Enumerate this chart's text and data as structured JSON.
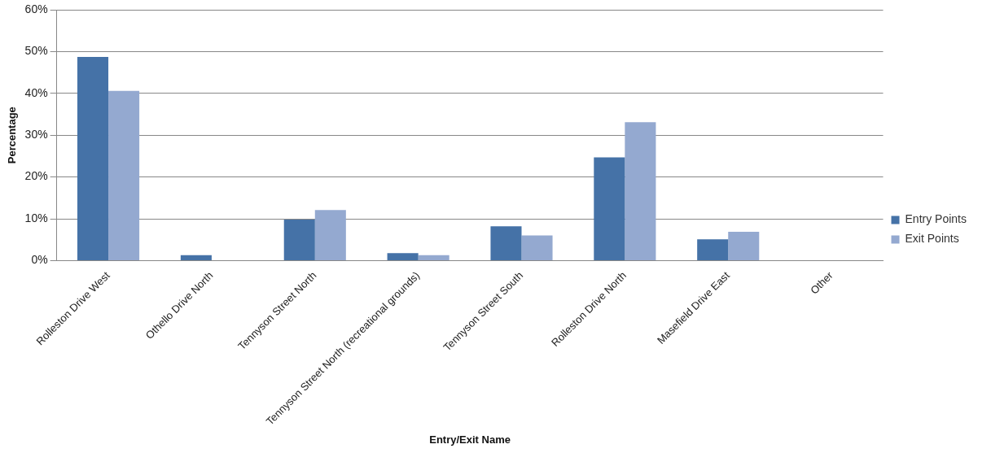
{
  "chart_data": {
    "type": "bar",
    "xlabel": "Entry/Exit Name",
    "ylabel": "Percentage",
    "categories": [
      "Rolleston Drive West",
      "Othello Drive North",
      "Tennyson Street North",
      "Tennyson Street North (recreational grounds)",
      "Tennyson Street South",
      "Rolleston Drive North",
      "Masefield Drive East",
      "Other"
    ],
    "series": [
      {
        "name": "Entry Points",
        "color": "#4572a7",
        "values": [
          48.7,
          1.3,
          9.8,
          1.8,
          8.2,
          24.7,
          5.1,
          0
        ]
      },
      {
        "name": "Exit Points",
        "color": "#94a9d0",
        "values": [
          40.6,
          0,
          12.1,
          1.3,
          6.0,
          33.1,
          6.9,
          0
        ]
      }
    ],
    "ylim": [
      0,
      60
    ],
    "yticks": [
      {
        "value": 0,
        "label": "0%"
      },
      {
        "value": 10,
        "label": "10%"
      },
      {
        "value": 20,
        "label": "20%"
      },
      {
        "value": 30,
        "label": "30%"
      },
      {
        "value": 40,
        "label": "40%"
      },
      {
        "value": 50,
        "label": "50%"
      },
      {
        "value": 60,
        "label": "60%"
      }
    ],
    "grid": "y",
    "legend": "right"
  }
}
